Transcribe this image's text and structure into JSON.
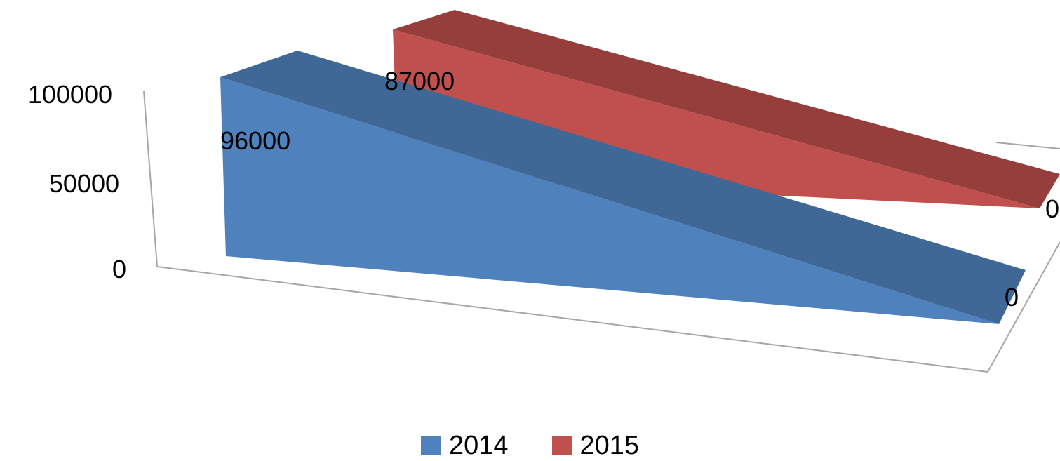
{
  "chart_data": {
    "type": "area",
    "view": "3d",
    "categories": [
      "",
      ""
    ],
    "series": [
      {
        "name": "2014",
        "values": [
          96000,
          0
        ],
        "color": "#4F81BD",
        "top_color": "#3F6896"
      },
      {
        "name": "2015",
        "values": [
          87000,
          0
        ],
        "color": "#C0504D",
        "top_color": "#963E3B"
      }
    ],
    "ylim": [
      0,
      100000
    ],
    "yticks": [
      0,
      50000,
      100000
    ],
    "ytick_labels": [
      "0",
      "50000",
      "100000"
    ],
    "data_labels": true,
    "legend_position": "bottom",
    "grid": false
  },
  "legend": {
    "items": [
      {
        "label": "2014",
        "color": "#4F81BD"
      },
      {
        "label": "2015",
        "color": "#C0504D"
      }
    ]
  }
}
